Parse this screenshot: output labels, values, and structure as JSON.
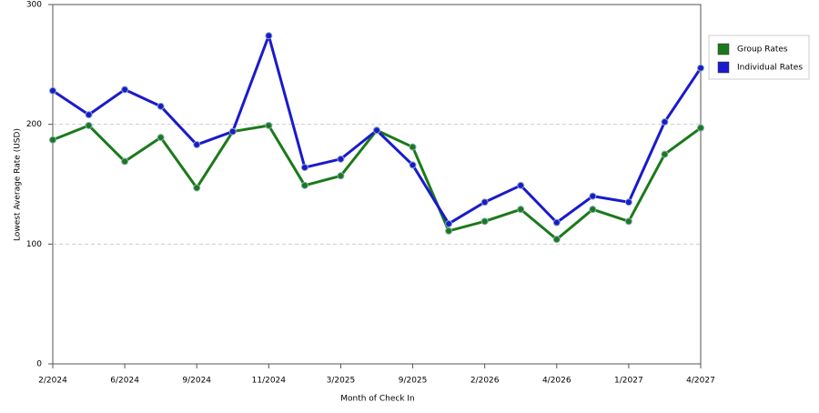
{
  "chart_data": {
    "type": "line",
    "x_label": "Month of Check In",
    "y_label": "Lowest Average Rate (USD)",
    "categories": [
      "2/2024",
      null,
      "6/2024",
      null,
      "9/2024",
      null,
      "11/2024",
      null,
      "3/2025",
      null,
      "9/2025",
      null,
      "2/2026",
      null,
      "4/2026",
      null,
      "1/2027",
      null,
      "4/2027"
    ],
    "series": [
      {
        "name": "Group Rates",
        "color": "#1a7a1a",
        "values": [
          187,
          199,
          169,
          189,
          147,
          194,
          199,
          149,
          157,
          195,
          181,
          111,
          119,
          129,
          104,
          129,
          119,
          175,
          197
        ]
      },
      {
        "name": "Individual Rates",
        "color": "#1a1acc",
        "values": [
          228,
          208,
          229,
          215,
          183,
          194,
          274,
          164,
          171,
          195,
          166,
          117,
          135,
          149,
          118,
          140,
          135,
          202,
          247
        ]
      }
    ],
    "ylim": [
      0,
      300
    ],
    "yticks": [
      0,
      100,
      200,
      300
    ],
    "grid": true,
    "legend": "right"
  }
}
